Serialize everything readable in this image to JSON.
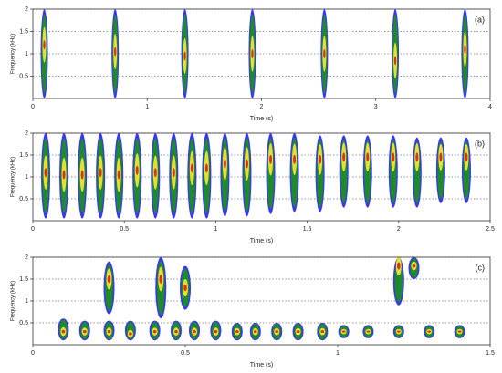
{
  "chart_data": [
    {
      "type": "spectrogram",
      "label": "(a)",
      "xlabel": "Time (s)",
      "ylabel": "Frequency (kHz)",
      "xlim": [
        0,
        4
      ],
      "xticks": [
        0,
        1,
        2,
        3,
        4
      ],
      "ylim": [
        0,
        2
      ],
      "yticks": [
        0.5,
        1,
        1.5,
        2
      ],
      "grid": true,
      "colors": [
        "#2222ee",
        "#1f8a2a",
        "#e4e030",
        "#e03020"
      ],
      "calls": [
        {
          "time": 0.1,
          "low": 0,
          "high": 2,
          "peak": 1.2
        },
        {
          "time": 0.72,
          "low": 0,
          "high": 2,
          "peak": 1.05
        },
        {
          "time": 1.33,
          "low": 0,
          "high": 2,
          "peak": 0.95
        },
        {
          "time": 1.92,
          "low": 0,
          "high": 2,
          "peak": 1.0
        },
        {
          "time": 2.55,
          "low": 0,
          "high": 2,
          "peak": 1.0
        },
        {
          "time": 3.17,
          "low": 0,
          "high": 2,
          "peak": 0.85
        },
        {
          "time": 3.78,
          "low": 0,
          "high": 2,
          "peak": 1.1
        }
      ]
    },
    {
      "type": "spectrogram",
      "label": "(b)",
      "xlabel": "Time (s)",
      "ylabel": "Frequency (kHz)",
      "xlim": [
        0,
        2.5
      ],
      "xticks": [
        0,
        0.5,
        1,
        1.5,
        2,
        2.5
      ],
      "ylim": [
        0,
        2
      ],
      "yticks": [
        0.5,
        1,
        1.5,
        2
      ],
      "grid": true,
      "colors": [
        "#2222ee",
        "#1f8a2a",
        "#e4e030",
        "#e03020"
      ],
      "calls": [
        {
          "time": 0.07,
          "low": 0.05,
          "high": 2,
          "peak": 1.1
        },
        {
          "time": 0.17,
          "low": 0.05,
          "high": 2,
          "peak": 1.05
        },
        {
          "time": 0.27,
          "low": 0.05,
          "high": 2,
          "peak": 1.05
        },
        {
          "time": 0.37,
          "low": 0.05,
          "high": 2,
          "peak": 1.1
        },
        {
          "time": 0.47,
          "low": 0.05,
          "high": 2,
          "peak": 1.05
        },
        {
          "time": 0.57,
          "low": 0.05,
          "high": 2,
          "peak": 1.15
        },
        {
          "time": 0.67,
          "low": 0.05,
          "high": 2,
          "peak": 1.1
        },
        {
          "time": 0.77,
          "low": 0.05,
          "high": 2,
          "peak": 1.1
        },
        {
          "time": 0.87,
          "low": 0.05,
          "high": 2,
          "peak": 1.2
        },
        {
          "time": 0.95,
          "low": 0.05,
          "high": 2,
          "peak": 1.2
        },
        {
          "time": 1.05,
          "low": 0.1,
          "high": 2,
          "peak": 1.3
        },
        {
          "time": 1.17,
          "low": 0.1,
          "high": 2,
          "peak": 1.3
        },
        {
          "time": 1.3,
          "low": 0.15,
          "high": 2,
          "peak": 1.4
        },
        {
          "time": 1.43,
          "low": 0.2,
          "high": 2,
          "peak": 1.4
        },
        {
          "time": 1.57,
          "low": 0.2,
          "high": 1.95,
          "peak": 1.4
        },
        {
          "time": 1.7,
          "low": 0.3,
          "high": 1.95,
          "peak": 1.45
        },
        {
          "time": 1.83,
          "low": 0.3,
          "high": 1.95,
          "peak": 1.45
        },
        {
          "time": 1.97,
          "low": 0.3,
          "high": 1.95,
          "peak": 1.45
        },
        {
          "time": 2.1,
          "low": 0.3,
          "high": 1.9,
          "peak": 1.45
        },
        {
          "time": 2.23,
          "low": 0.4,
          "high": 1.9,
          "peak": 1.45
        },
        {
          "time": 2.37,
          "low": 0.4,
          "high": 1.9,
          "peak": 1.45
        }
      ]
    },
    {
      "type": "spectrogram",
      "label": "(c)",
      "xlabel": "Time (s)",
      "ylabel": "Frequency (kHz)",
      "xlim": [
        0,
        1.5
      ],
      "xticks": [
        0,
        0.5,
        1,
        1.5
      ],
      "ylim": [
        0,
        2
      ],
      "yticks": [
        0.5,
        1,
        1.5,
        2
      ],
      "grid": true,
      "colors": [
        "#2222ee",
        "#1f8a2a",
        "#e4e030",
        "#e03020"
      ],
      "calls": [
        {
          "time": 0.1,
          "low": 0.1,
          "high": 0.6,
          "peak": 0.3
        },
        {
          "time": 0.17,
          "low": 0.1,
          "high": 0.55,
          "peak": 0.3
        },
        {
          "time": 0.25,
          "low": 0.1,
          "high": 0.55,
          "peak": 0.3
        },
        {
          "time": 0.32,
          "low": 0.1,
          "high": 0.55,
          "peak": 0.25
        },
        {
          "time": 0.4,
          "low": 0.1,
          "high": 0.55,
          "peak": 0.3
        },
        {
          "time": 0.47,
          "low": 0.1,
          "high": 0.55,
          "peak": 0.3
        },
        {
          "time": 0.53,
          "low": 0.1,
          "high": 0.55,
          "peak": 0.3
        },
        {
          "time": 0.6,
          "low": 0.1,
          "high": 0.55,
          "peak": 0.3
        },
        {
          "time": 0.67,
          "low": 0.1,
          "high": 0.5,
          "peak": 0.3
        },
        {
          "time": 0.73,
          "low": 0.1,
          "high": 0.5,
          "peak": 0.3
        },
        {
          "time": 0.8,
          "low": 0.1,
          "high": 0.5,
          "peak": 0.3
        },
        {
          "time": 0.87,
          "low": 0.1,
          "high": 0.5,
          "peak": 0.3
        },
        {
          "time": 0.95,
          "low": 0.1,
          "high": 0.5,
          "peak": 0.3
        },
        {
          "time": 1.02,
          "low": 0.15,
          "high": 0.45,
          "peak": 0.3
        },
        {
          "time": 1.1,
          "low": 0.15,
          "high": 0.45,
          "peak": 0.3
        },
        {
          "time": 1.2,
          "low": 0.15,
          "high": 0.45,
          "peak": 0.3
        },
        {
          "time": 1.3,
          "low": 0.15,
          "high": 0.45,
          "peak": 0.3
        },
        {
          "time": 1.4,
          "low": 0.15,
          "high": 0.45,
          "peak": 0.3
        },
        {
          "time": 0.25,
          "low": 0.7,
          "high": 1.9,
          "peak": 1.5
        },
        {
          "time": 0.42,
          "low": 0.6,
          "high": 2,
          "peak": 1.5
        },
        {
          "time": 0.5,
          "low": 0.8,
          "high": 1.8,
          "peak": 1.3
        },
        {
          "time": 1.2,
          "low": 0.9,
          "high": 2,
          "peak": 1.8
        },
        {
          "time": 1.25,
          "low": 1.5,
          "high": 2,
          "peak": 1.8
        }
      ]
    }
  ]
}
